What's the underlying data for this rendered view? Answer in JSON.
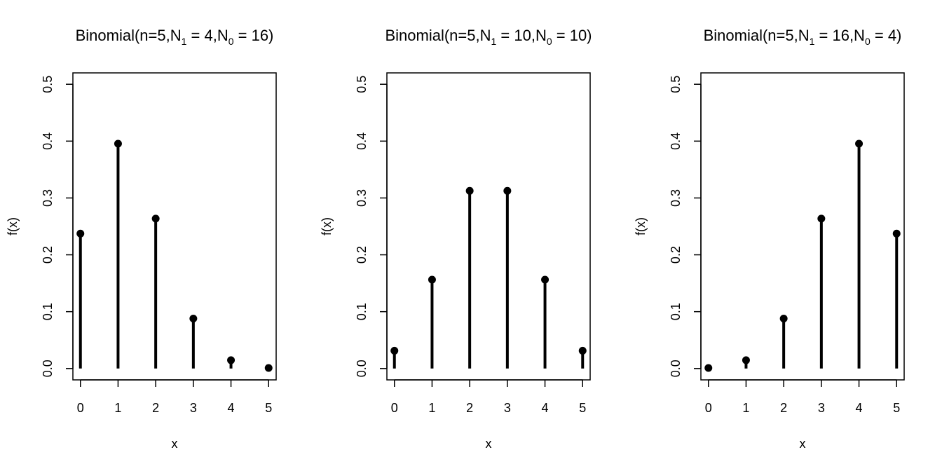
{
  "chart_data": [
    {
      "type": "stem",
      "title": {
        "prefix": "Binomial(n=5,N",
        "sub1": "1",
        "mid": " = 4,N",
        "sub0": "0",
        "suffix": " = 16)"
      },
      "xlabel": "x",
      "ylabel": "f(x)",
      "x": [
        0,
        1,
        2,
        3,
        4,
        5
      ],
      "y": [
        0.2373,
        0.3955,
        0.2637,
        0.0879,
        0.0146,
        0.001
      ],
      "xticks": [
        "0",
        "1",
        "2",
        "3",
        "4",
        "5"
      ],
      "yticks": [
        "0.0",
        "0.1",
        "0.2",
        "0.3",
        "0.4",
        "0.5"
      ],
      "xlim": [
        -0.2,
        5.2
      ],
      "ylim": [
        -0.02,
        0.52
      ]
    },
    {
      "type": "stem",
      "title": {
        "prefix": "Binomial(n=5,N",
        "sub1": "1",
        "mid": " = 10,N",
        "sub0": "0",
        "suffix": " = 10)"
      },
      "xlabel": "x",
      "ylabel": "f(x)",
      "x": [
        0,
        1,
        2,
        3,
        4,
        5
      ],
      "y": [
        0.03125,
        0.15625,
        0.3125,
        0.3125,
        0.15625,
        0.03125
      ],
      "xticks": [
        "0",
        "1",
        "2",
        "3",
        "4",
        "5"
      ],
      "yticks": [
        "0.0",
        "0.1",
        "0.2",
        "0.3",
        "0.4",
        "0.5"
      ],
      "xlim": [
        -0.2,
        5.2
      ],
      "ylim": [
        -0.02,
        0.52
      ]
    },
    {
      "type": "stem",
      "title": {
        "prefix": "Binomial(n=5,N",
        "sub1": "1",
        "mid": " = 16,N",
        "sub0": "0",
        "suffix": " = 4)"
      },
      "xlabel": "x",
      "ylabel": "f(x)",
      "x": [
        0,
        1,
        2,
        3,
        4,
        5
      ],
      "y": [
        0.001,
        0.0146,
        0.0879,
        0.2637,
        0.3955,
        0.2373
      ],
      "xticks": [
        "0",
        "1",
        "2",
        "3",
        "4",
        "5"
      ],
      "yticks": [
        "0.0",
        "0.1",
        "0.2",
        "0.3",
        "0.4",
        "0.5"
      ],
      "xlim": [
        -0.2,
        5.2
      ],
      "ylim": [
        -0.02,
        0.52
      ]
    }
  ]
}
